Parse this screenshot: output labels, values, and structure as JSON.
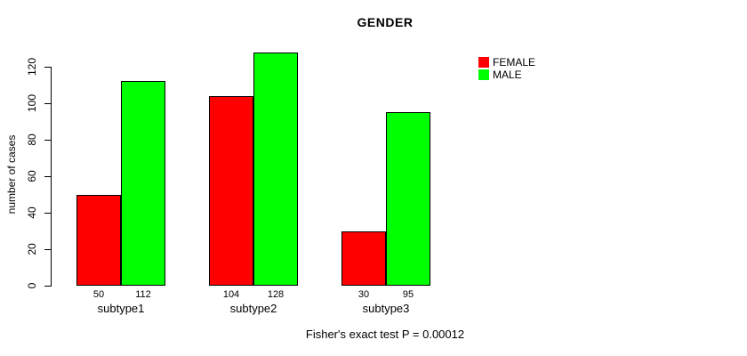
{
  "chart_data": {
    "type": "bar",
    "title": "GENDER",
    "subtitle": "Fisher's exact test P = 0.00012",
    "ylabel": "number of cases",
    "xlabel": "",
    "categories": [
      "subtype1",
      "subtype2",
      "subtype3"
    ],
    "series": [
      {
        "name": "FEMALE",
        "color": "#ff0000",
        "values": [
          50,
          104,
          30
        ]
      },
      {
        "name": "MALE",
        "color": "#00ff00",
        "values": [
          112,
          128,
          95
        ]
      }
    ],
    "value_labels_shown": true,
    "ylim": [
      0,
      120
    ],
    "yticks": [
      0,
      20,
      40,
      60,
      80,
      100,
      120
    ],
    "grid": false,
    "legend_position": "top-right",
    "bar_border_color": "#000000",
    "background_color": "#ffffff"
  }
}
